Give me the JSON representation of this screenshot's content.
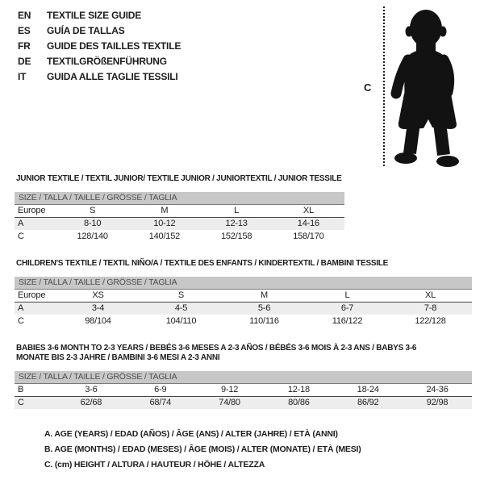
{
  "header": {
    "languages": [
      {
        "code": "EN",
        "title": "TEXTILE SIZE GUIDE"
      },
      {
        "code": "ES",
        "title": "GUÍA DE TALLAS"
      },
      {
        "code": "FR",
        "title": "GUIDE DES TAILLES TEXTILE"
      },
      {
        "code": "DE",
        "title": "TEXTILGRÖßENFÜHRUNG"
      },
      {
        "code": "IT",
        "title": "GUIDA ALLE TAGLIE TESSILI"
      }
    ]
  },
  "figure": {
    "label": "C",
    "icon": "baby-silhouette-icon",
    "line": "dotted-height-measure-line"
  },
  "size_header": "SIZE / TALLA / TAILLE / GRÖSSE / TAGLIA",
  "sections": [
    {
      "key": "junior",
      "title": "JUNIOR TEXTILE / TEXTIL JUNIOR/ TEXTILE JUNIOR / JUNIORTEXTIL / JUNIOR TESSILE",
      "rows": [
        {
          "label": "Europe",
          "values": [
            "S",
            "M",
            "L",
            "XL"
          ],
          "shaded": false,
          "underline": true
        },
        {
          "label": "A",
          "values": [
            "8-10",
            "10-12",
            "12-13",
            "14-16"
          ],
          "shaded": true,
          "underline": false
        },
        {
          "label": "C",
          "values": [
            "128/140",
            "140/152",
            "152/158",
            "158/170"
          ],
          "shaded": false,
          "underline": false
        }
      ]
    },
    {
      "key": "children",
      "title": "CHILDREN'S TEXTILE / TEXTIL NIÑO/A / TEXTILE DES ENFANTS / KINDERTEXTIL / BAMBINI TESSILE",
      "rows": [
        {
          "label": "Europe",
          "values": [
            "XS",
            "S",
            "M",
            "L",
            "XL"
          ],
          "shaded": false,
          "underline": true
        },
        {
          "label": "A",
          "values": [
            "3-4",
            "4-5",
            "5-6",
            "6-7",
            "7-8"
          ],
          "shaded": true,
          "underline": false
        },
        {
          "label": "C",
          "values": [
            "98/104",
            "104/110",
            "110/116",
            "116/122",
            "122/128"
          ],
          "shaded": false,
          "underline": false
        }
      ]
    },
    {
      "key": "babies",
      "title": "BABIES 3-6 MONTH TO 2-3 YEARS / BEBÉS 3-6 MESES A 2-3 AÑOS / BÉBÉS 3-6 MOIS À 2-3 ANS / BABYS 3-6 MONATE BIS 2-3 JAHRE / BAMBINI 3-6 MESI A 2-3 ANNI",
      "rows": [
        {
          "label": "B",
          "values": [
            "3-6",
            "6-9",
            "9-12",
            "12-18",
            "18-24",
            "24-36"
          ],
          "shaded": false,
          "underline": true
        },
        {
          "label": "C",
          "values": [
            "62/68",
            "68/74",
            "74/80",
            "80/86",
            "86/92",
            "92/98"
          ],
          "shaded": true,
          "underline": false
        }
      ]
    }
  ],
  "legend": [
    "A. AGE (YEARS) / EDAD (AÑOS) / ÂGE (ANS) / ALTER (JAHRE) / ETÀ (ANNI)",
    "B. AGE (MONTHS) / EDAD (MESES) / ÂGE (MOIS) / ALTER (MONATE) / ETÀ (MESI)",
    "C. (cm) HEIGHT / ALTURA / HAUTEUR / HÖHE / ALTEZZA"
  ],
  "colors": {
    "size_bar_bg": "#c7c7c7",
    "row_shade": "#ededed",
    "text": "#1c1c1c",
    "silhouette": "#121212"
  }
}
